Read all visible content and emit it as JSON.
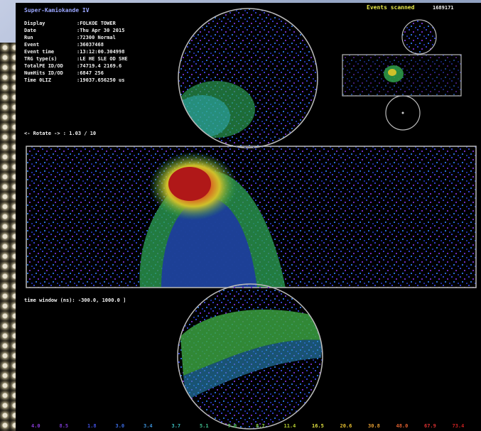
{
  "title": "Super-Kamiokande IV",
  "events_scanned": {
    "label": "Events scanned",
    "value": "1689171"
  },
  "info": [
    {
      "label": "Display",
      "value": ":FOLKOE TOWER"
    },
    {
      "label": "Date",
      "value": ":Thu Apr 30 2015"
    },
    {
      "label": "Run",
      "value": ":72300 Normal"
    },
    {
      "label": "Event",
      "value": ":36037468"
    },
    {
      "label": "Event time",
      "value": ":13:12:00.304998"
    },
    {
      "label": "TRG type(s)",
      "value": ":LE HE SLE OD SHE"
    },
    {
      "label": "TotalPE ID/OD",
      "value": ":74719.4    2169.6"
    },
    {
      "label": "NumHits ID/OD",
      "value": ":6847   256"
    },
    {
      "label": "Time 0LIZ",
      "value": ":19037.656250 us"
    }
  ],
  "rotate_text": "<- Rotate -> :  1.03 / 10",
  "time_window_text": "time window (ns): -300.0, 1000.0 ]",
  "scale_values": [
    "4.0",
    "8.5",
    "1.8",
    "3.0",
    "3.4",
    "3.7",
    "5.1",
    "7.0",
    "8.7",
    "11.4",
    "16.5",
    "20.6",
    "30.8",
    "48.0",
    "67.9",
    "73.4"
  ],
  "colors": {
    "background": "#000000",
    "outline": "#bbbbbb",
    "text": "#f2f2f2",
    "accent": "#e9e94a"
  }
}
